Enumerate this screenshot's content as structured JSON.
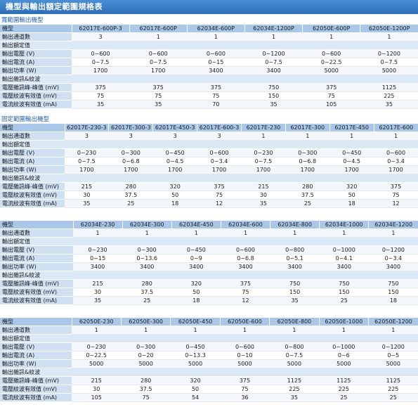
{
  "banner": "機型與輸出額定範圍規格表",
  "row_labels": {
    "model": "機型",
    "channels": "輸出通道數",
    "rated": "輸出額定值",
    "voltage": "輸出電壓 (V)",
    "current": "輸出電流 (A)",
    "power": "輸出功率 (W)",
    "noise": "輸出雜訊&紋波",
    "vpp": "電壓雜訊峰-峰值 (mV)",
    "vrms": "電壓紋波有效值 (mV)",
    "irms": "電流紋波有效值 (mA)"
  },
  "sections": [
    {
      "title": "寬範圍輸出機型",
      "models": [
        "62017E-600P-3",
        "62017E-600P",
        "62034E-600P",
        "62034E-1200P",
        "62050E-600P",
        "62050E-1200P"
      ],
      "channels": [
        "3",
        "1",
        "1",
        "1",
        "1",
        "1"
      ],
      "voltage": [
        "0~600",
        "0~600",
        "0~600",
        "0~1200",
        "0~600",
        "0~1200"
      ],
      "current": [
        "0~7.5",
        "0~7.5",
        "0~15",
        "0~7.5",
        "0~22.5",
        "0~7.5"
      ],
      "power": [
        "1700",
        "1700",
        "3400",
        "3400",
        "5000",
        "5000"
      ],
      "vpp": [
        "375",
        "375",
        "375",
        "750",
        "375",
        "1125"
      ],
      "vrms": [
        "75",
        "75",
        "75",
        "150",
        "75",
        "225"
      ],
      "irms": [
        "35",
        "35",
        "70",
        "35",
        "105",
        "35"
      ]
    },
    {
      "title": "固定範圍輸出機型",
      "models": [
        "62017E-230-3",
        "62017E-300-3",
        "62017E-450-3",
        "62017E-600-3",
        "62017E-230",
        "62017E-300",
        "62017E-450",
        "62017E-600"
      ],
      "channels": [
        "3",
        "3",
        "3",
        "3",
        "1",
        "1",
        "1",
        "1"
      ],
      "voltage": [
        "0~230",
        "0~300",
        "0~450",
        "0~600",
        "0~230",
        "0~300",
        "0~450",
        "0~600"
      ],
      "current": [
        "0~7.5",
        "0~6.8",
        "0~4.5",
        "0~3.4",
        "0~7.5",
        "0~6.8",
        "0~4.5",
        "0~3.4"
      ],
      "power": [
        "1700",
        "1700",
        "1700",
        "1700",
        "1700",
        "1700",
        "1700",
        "1700"
      ],
      "vpp": [
        "215",
        "280",
        "320",
        "375",
        "215",
        "280",
        "320",
        "375"
      ],
      "vrms": [
        "30",
        "37.5",
        "50",
        "75",
        "30",
        "37.5",
        "50",
        "75"
      ],
      "irms": [
        "35",
        "25",
        "18",
        "12",
        "35",
        "25",
        "18",
        "12"
      ]
    },
    {
      "title": "",
      "models": [
        "62034E-230",
        "62034E-300",
        "62034E-450",
        "62034E-600",
        "62034E-800",
        "62034E-1000",
        "62034E-1200"
      ],
      "channels": [
        "1",
        "1",
        "1",
        "1",
        "1",
        "1",
        "1"
      ],
      "voltage": [
        "0~230",
        "0~300",
        "0~450",
        "0~600",
        "0~800",
        "0~1000",
        "0~1200"
      ],
      "current": [
        "0~15",
        "0~13.6",
        "0~9",
        "0~6.8",
        "0~5.1",
        "0~4.1",
        "0~3.4"
      ],
      "power": [
        "3400",
        "3400",
        "3400",
        "3400",
        "3400",
        "3400",
        "3400"
      ],
      "vpp": [
        "215",
        "280",
        "320",
        "375",
        "750",
        "750",
        "750"
      ],
      "vrms": [
        "30",
        "37.5",
        "50",
        "75",
        "150",
        "150",
        "150"
      ],
      "irms": [
        "35",
        "25",
        "18",
        "12",
        "35",
        "25",
        "18"
      ]
    },
    {
      "title": "",
      "models": [
        "62050E-230",
        "62050E-300",
        "62050E-450",
        "62050E-600",
        "62050E-800",
        "62050E-1000",
        "62050E-1200"
      ],
      "channels": [
        "1",
        "1",
        "1",
        "1",
        "1",
        "1",
        "1"
      ],
      "voltage": [
        "0~230",
        "0~300",
        "0~450",
        "0~600",
        "0~800",
        "0~1000",
        "0~1200"
      ],
      "current": [
        "0~22.5",
        "0~20",
        "0~13.3",
        "0~10",
        "0~7.5",
        "0~6",
        "0~5"
      ],
      "power": [
        "5000",
        "5000",
        "5000",
        "5000",
        "5000",
        "5000",
        "5000"
      ],
      "vpp": [
        "215",
        "280",
        "320",
        "375",
        "1125",
        "1125",
        "1125"
      ],
      "vrms": [
        "30",
        "37.5",
        "50",
        "75",
        "225",
        "225",
        "225"
      ],
      "irms": [
        "105",
        "75",
        "54",
        "36",
        "35",
        "25",
        "25"
      ]
    }
  ]
}
